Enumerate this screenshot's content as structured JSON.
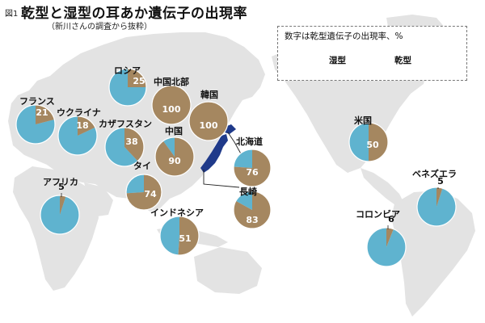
{
  "figure": {
    "fig_label": "図1",
    "title": "乾型と湿型の耳あか遺伝子の出現率",
    "subtitle": "（新川さんの調査から抜粋）"
  },
  "legend": {
    "title": "数字は乾型遺伝子の出現率、%",
    "wet_label": "湿型",
    "dry_label": "乾型"
  },
  "colors": {
    "wet": "#5fb3cf",
    "dry": "#a58760",
    "land": "#e3e3e3",
    "japan": "#1f3a8a",
    "pie_border": "#ffffff"
  },
  "icons": {
    "wet_legend": "cotton-swab-icon",
    "dry_legend": "ear-pick-icon"
  },
  "chart_data": {
    "type": "pie",
    "value_meaning": "乾型遺伝子の出現率 (%)",
    "pies": [
      {
        "id": "russia",
        "name": "ロシア",
        "dry": 25,
        "wet": 75
      },
      {
        "id": "n-china",
        "name": "中国北部",
        "dry": 100,
        "wet": 0
      },
      {
        "id": "korea",
        "name": "韓国",
        "dry": 100,
        "wet": 0
      },
      {
        "id": "france",
        "name": "フランス",
        "dry": 21,
        "wet": 79
      },
      {
        "id": "ukraine",
        "name": "ウクライナ",
        "dry": 18,
        "wet": 82
      },
      {
        "id": "kazakh",
        "name": "カザフスタン",
        "dry": 38,
        "wet": 62
      },
      {
        "id": "china",
        "name": "中国",
        "dry": 90,
        "wet": 10
      },
      {
        "id": "hokkaido",
        "name": "北海道",
        "dry": 76,
        "wet": 24
      },
      {
        "id": "thailand",
        "name": "タイ",
        "dry": 74,
        "wet": 26
      },
      {
        "id": "nagasaki",
        "name": "長崎",
        "dry": 83,
        "wet": 17
      },
      {
        "id": "africa",
        "name": "アフリカ",
        "dry": 5,
        "wet": 95
      },
      {
        "id": "indonesia",
        "name": "インドネシア",
        "dry": 51,
        "wet": 49
      },
      {
        "id": "usa",
        "name": "米国",
        "dry": 50,
        "wet": 50
      },
      {
        "id": "venezuela",
        "name": "ベネズエラ",
        "dry": 5,
        "wet": 95
      },
      {
        "id": "colombia",
        "name": "コロンビア",
        "dry": 6,
        "wet": 94
      }
    ]
  }
}
